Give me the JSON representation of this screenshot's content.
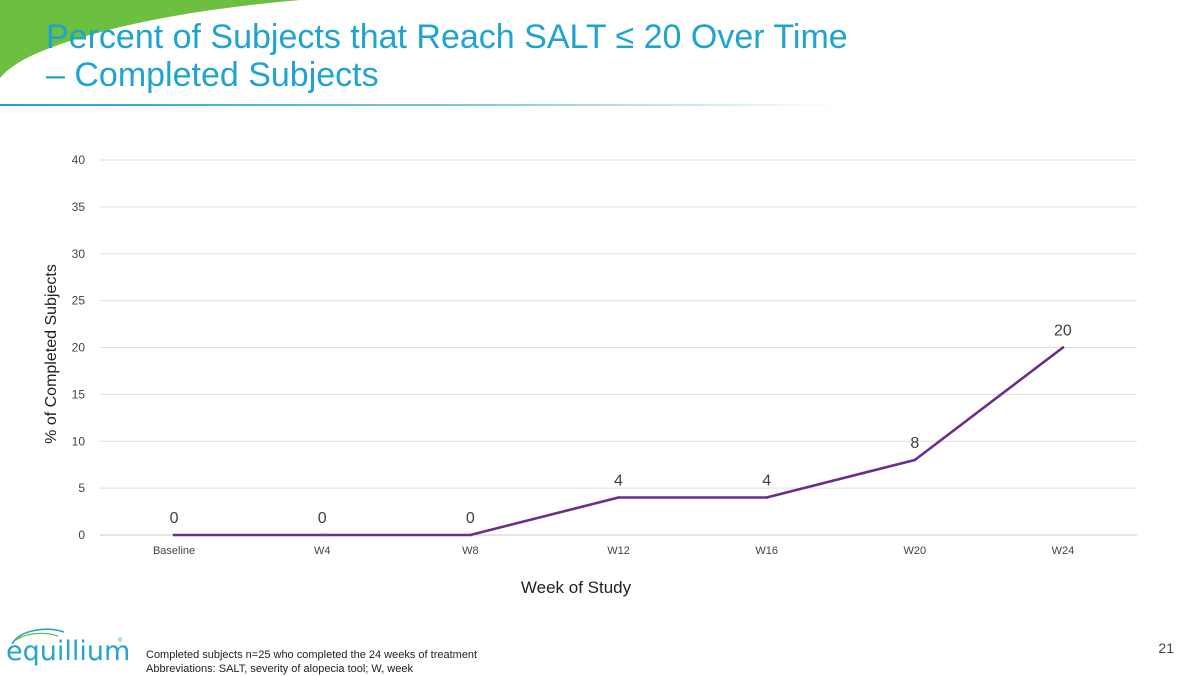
{
  "slide": {
    "title_line1": "Percent of Subjects that Reach SALT ≤ 20 Over Time",
    "title_line2": "– Completed Subjects",
    "page_number": "21",
    "footnote_1": "Completed subjects n=25 who completed the 24 weeks of treatment",
    "footnote_2": "Abbreviations: SALT, severity of alopecia tool; W, week",
    "logo_text": "equillium",
    "logo_tm": "®",
    "accent_color": "#1fa3cf",
    "swoosh_color": "#6cbf3f"
  },
  "chart_data": {
    "type": "line",
    "title": "",
    "xlabel": "Week of Study",
    "ylabel": "% of Completed Subjects",
    "ylim": [
      0,
      40
    ],
    "yticks": [
      0,
      5,
      10,
      15,
      20,
      25,
      30,
      35,
      40
    ],
    "grid": true,
    "legend": "none",
    "categories": [
      "Baseline",
      "W4",
      "W8",
      "W12",
      "W16",
      "W20",
      "W24"
    ],
    "series": [
      {
        "name": "% of Completed Subjects",
        "values": [
          0,
          0,
          0,
          4,
          4,
          8,
          20
        ],
        "color": "#6a2e8c"
      }
    ],
    "data_labels": [
      "0",
      "0",
      "0",
      "4",
      "4",
      "8",
      "20"
    ]
  }
}
